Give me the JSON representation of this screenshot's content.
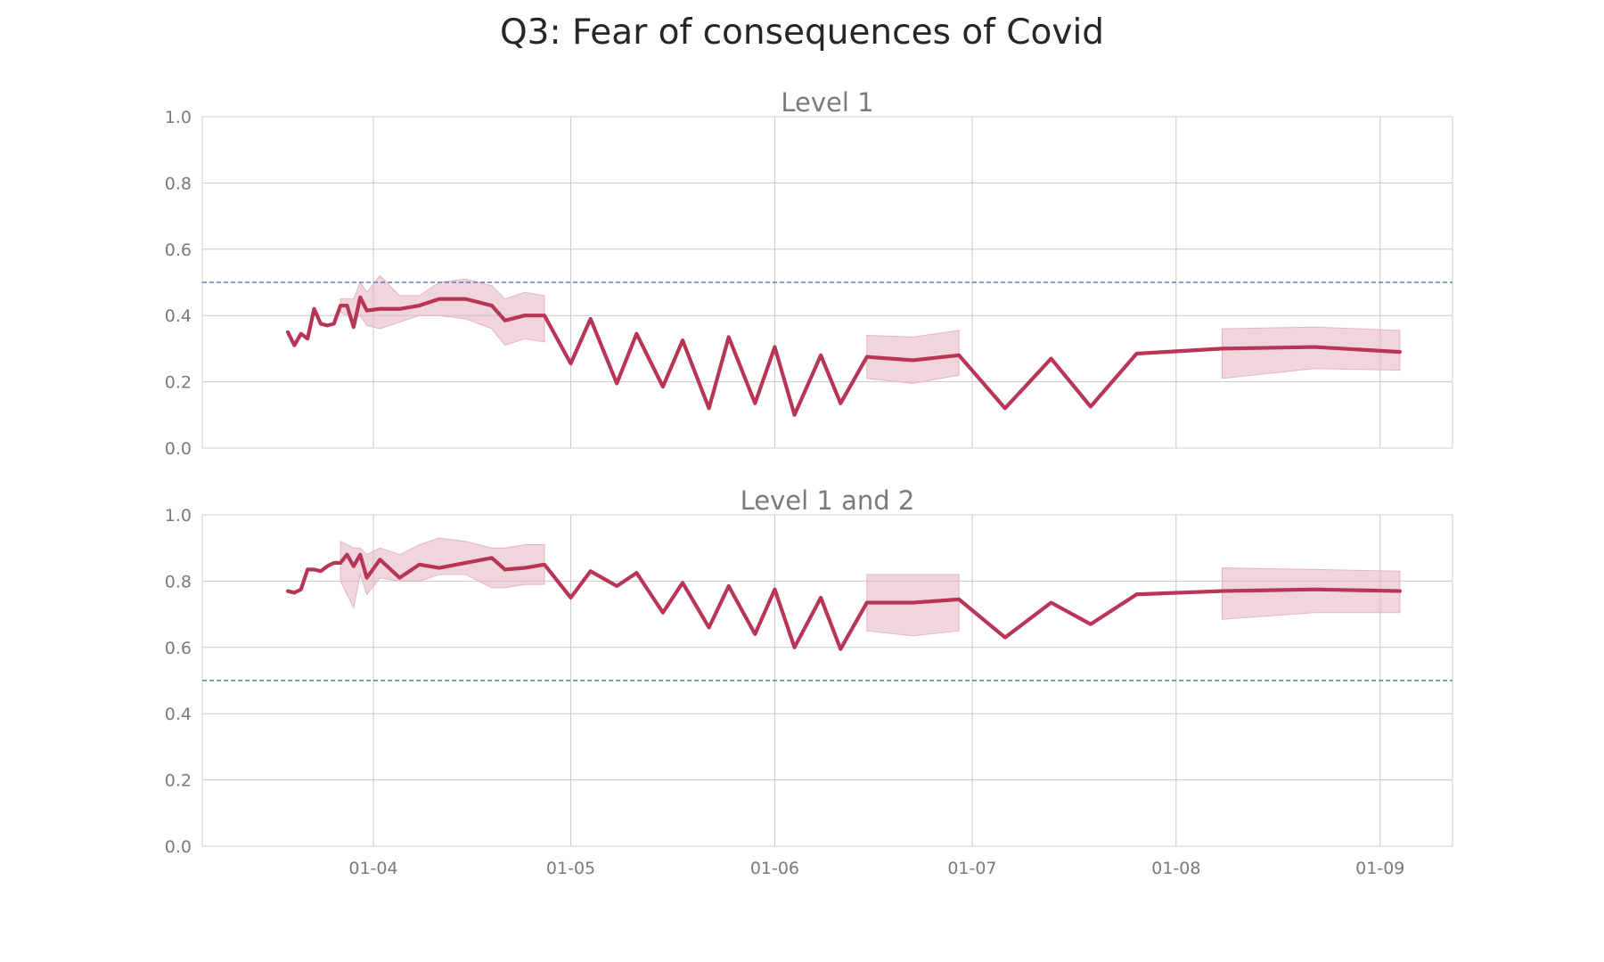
{
  "title": "Q3: Fear of consequences of Covid",
  "colors": {
    "line": "#b83556",
    "band": "#e6b3c0",
    "reference": "#5a7fa8",
    "grid": "#c8c8c8",
    "frame": "#d0d0d0"
  },
  "chart_data": [
    {
      "type": "line",
      "subplot_title": "Level 1",
      "ylim": [
        0,
        1
      ],
      "y_ticks": [
        "0.0",
        "0.2",
        "0.4",
        "0.6",
        "0.8",
        "1.0"
      ],
      "x_ticks": [
        "01-04",
        "01-05",
        "01-06",
        "01-07",
        "01-08",
        "01-09"
      ],
      "x_range": [
        "2020-03-06",
        "2020-09-12"
      ],
      "reference_line": 0.5,
      "grid": true,
      "series": [
        {
          "x": [
            "2020-03-19",
            "2020-03-20",
            "2020-03-21",
            "2020-03-22",
            "2020-03-23",
            "2020-03-24",
            "2020-03-25",
            "2020-03-26",
            "2020-03-27",
            "2020-03-28",
            "2020-03-29",
            "2020-03-30",
            "2020-03-31",
            "2020-04-02",
            "2020-04-05",
            "2020-04-08",
            "2020-04-11",
            "2020-04-15",
            "2020-04-19",
            "2020-04-21",
            "2020-04-24",
            "2020-04-27",
            "2020-05-01",
            "2020-05-04",
            "2020-05-08",
            "2020-05-11",
            "2020-05-15",
            "2020-05-18",
            "2020-05-22",
            "2020-05-25",
            "2020-05-29",
            "2020-06-01",
            "2020-06-04",
            "2020-06-08",
            "2020-06-11",
            "2020-06-15",
            "2020-06-22",
            "2020-06-29",
            "2020-07-06",
            "2020-07-13",
            "2020-07-19",
            "2020-07-26",
            "2020-08-08",
            "2020-08-22",
            "2020-09-04"
          ],
          "y": [
            0.35,
            0.31,
            0.345,
            0.33,
            0.42,
            0.375,
            0.37,
            0.375,
            0.43,
            0.43,
            0.365,
            0.455,
            0.415,
            0.42,
            0.42,
            0.43,
            0.45,
            0.45,
            0.43,
            0.385,
            0.4,
            0.4,
            0.255,
            0.39,
            0.195,
            0.345,
            0.185,
            0.325,
            0.12,
            0.335,
            0.135,
            0.305,
            0.1,
            0.28,
            0.135,
            0.275,
            0.265,
            0.28,
            0.12,
            0.27,
            0.125,
            0.285,
            0.3,
            0.305,
            0.29
          ],
          "ci_x": [
            "2020-03-27",
            "2020-03-29",
            "2020-03-30",
            "2020-03-31",
            "2020-04-02",
            "2020-04-05",
            "2020-04-08",
            "2020-04-11",
            "2020-04-15",
            "2020-04-19",
            "2020-04-21",
            "2020-04-24",
            "2020-04-27"
          ],
          "ci_lower": [
            0.41,
            0.39,
            0.4,
            0.37,
            0.36,
            0.38,
            0.4,
            0.4,
            0.39,
            0.36,
            0.31,
            0.33,
            0.32
          ],
          "ci_upper": [
            0.45,
            0.45,
            0.5,
            0.47,
            0.52,
            0.46,
            0.46,
            0.5,
            0.51,
            0.49,
            0.45,
            0.47,
            0.46
          ],
          "ci2_x": [
            "2020-06-15",
            "2020-06-22",
            "2020-06-29"
          ],
          "ci2_lower": [
            0.21,
            0.195,
            0.22
          ],
          "ci2_upper": [
            0.34,
            0.335,
            0.355
          ],
          "ci3_x": [
            "2020-08-08",
            "2020-08-22",
            "2020-09-04"
          ],
          "ci3_lower": [
            0.21,
            0.24,
            0.235
          ],
          "ci3_upper": [
            0.36,
            0.365,
            0.355
          ]
        }
      ]
    },
    {
      "type": "line",
      "subplot_title": "Level 1 and 2",
      "ylim": [
        0,
        1
      ],
      "y_ticks": [
        "0.0",
        "0.2",
        "0.4",
        "0.6",
        "0.8",
        "1.0"
      ],
      "x_ticks": [
        "01-04",
        "01-05",
        "01-06",
        "01-07",
        "01-08",
        "01-09"
      ],
      "x_range": [
        "2020-03-06",
        "2020-09-12"
      ],
      "reference_line": 0.5,
      "grid": true,
      "series": [
        {
          "x": [
            "2020-03-19",
            "2020-03-20",
            "2020-03-21",
            "2020-03-22",
            "2020-03-23",
            "2020-03-24",
            "2020-03-25",
            "2020-03-26",
            "2020-03-27",
            "2020-03-28",
            "2020-03-29",
            "2020-03-30",
            "2020-03-31",
            "2020-04-02",
            "2020-04-05",
            "2020-04-08",
            "2020-04-11",
            "2020-04-15",
            "2020-04-19",
            "2020-04-21",
            "2020-04-24",
            "2020-04-27",
            "2020-05-01",
            "2020-05-04",
            "2020-05-08",
            "2020-05-11",
            "2020-05-15",
            "2020-05-18",
            "2020-05-22",
            "2020-05-25",
            "2020-05-29",
            "2020-06-01",
            "2020-06-04",
            "2020-06-08",
            "2020-06-11",
            "2020-06-15",
            "2020-06-22",
            "2020-06-29",
            "2020-07-06",
            "2020-07-13",
            "2020-07-19",
            "2020-07-26",
            "2020-08-08",
            "2020-08-22",
            "2020-09-04"
          ],
          "y": [
            0.77,
            0.765,
            0.775,
            0.835,
            0.835,
            0.83,
            0.845,
            0.855,
            0.855,
            0.88,
            0.845,
            0.88,
            0.81,
            0.865,
            0.81,
            0.85,
            0.84,
            0.855,
            0.87,
            0.835,
            0.84,
            0.85,
            0.75,
            0.83,
            0.785,
            0.825,
            0.705,
            0.795,
            0.66,
            0.785,
            0.64,
            0.775,
            0.6,
            0.75,
            0.595,
            0.735,
            0.735,
            0.745,
            0.63,
            0.735,
            0.67,
            0.76,
            0.77,
            0.775,
            0.77
          ],
          "ci_x": [
            "2020-03-27",
            "2020-03-29",
            "2020-03-30",
            "2020-03-31",
            "2020-04-02",
            "2020-04-05",
            "2020-04-08",
            "2020-04-11",
            "2020-04-15",
            "2020-04-19",
            "2020-04-21",
            "2020-04-24",
            "2020-04-27"
          ],
          "ci_lower": [
            0.8,
            0.72,
            0.82,
            0.76,
            0.81,
            0.8,
            0.8,
            0.82,
            0.82,
            0.78,
            0.78,
            0.79,
            0.79
          ],
          "ci_upper": [
            0.92,
            0.9,
            0.9,
            0.88,
            0.9,
            0.88,
            0.91,
            0.93,
            0.92,
            0.9,
            0.9,
            0.91,
            0.91
          ],
          "ci2_x": [
            "2020-06-15",
            "2020-06-22",
            "2020-06-29"
          ],
          "ci2_lower": [
            0.65,
            0.635,
            0.65
          ],
          "ci2_upper": [
            0.82,
            0.82,
            0.82
          ],
          "ci3_x": [
            "2020-08-08",
            "2020-08-22",
            "2020-09-04"
          ],
          "ci3_lower": [
            0.685,
            0.705,
            0.705
          ],
          "ci3_upper": [
            0.84,
            0.835,
            0.83
          ]
        }
      ]
    }
  ]
}
